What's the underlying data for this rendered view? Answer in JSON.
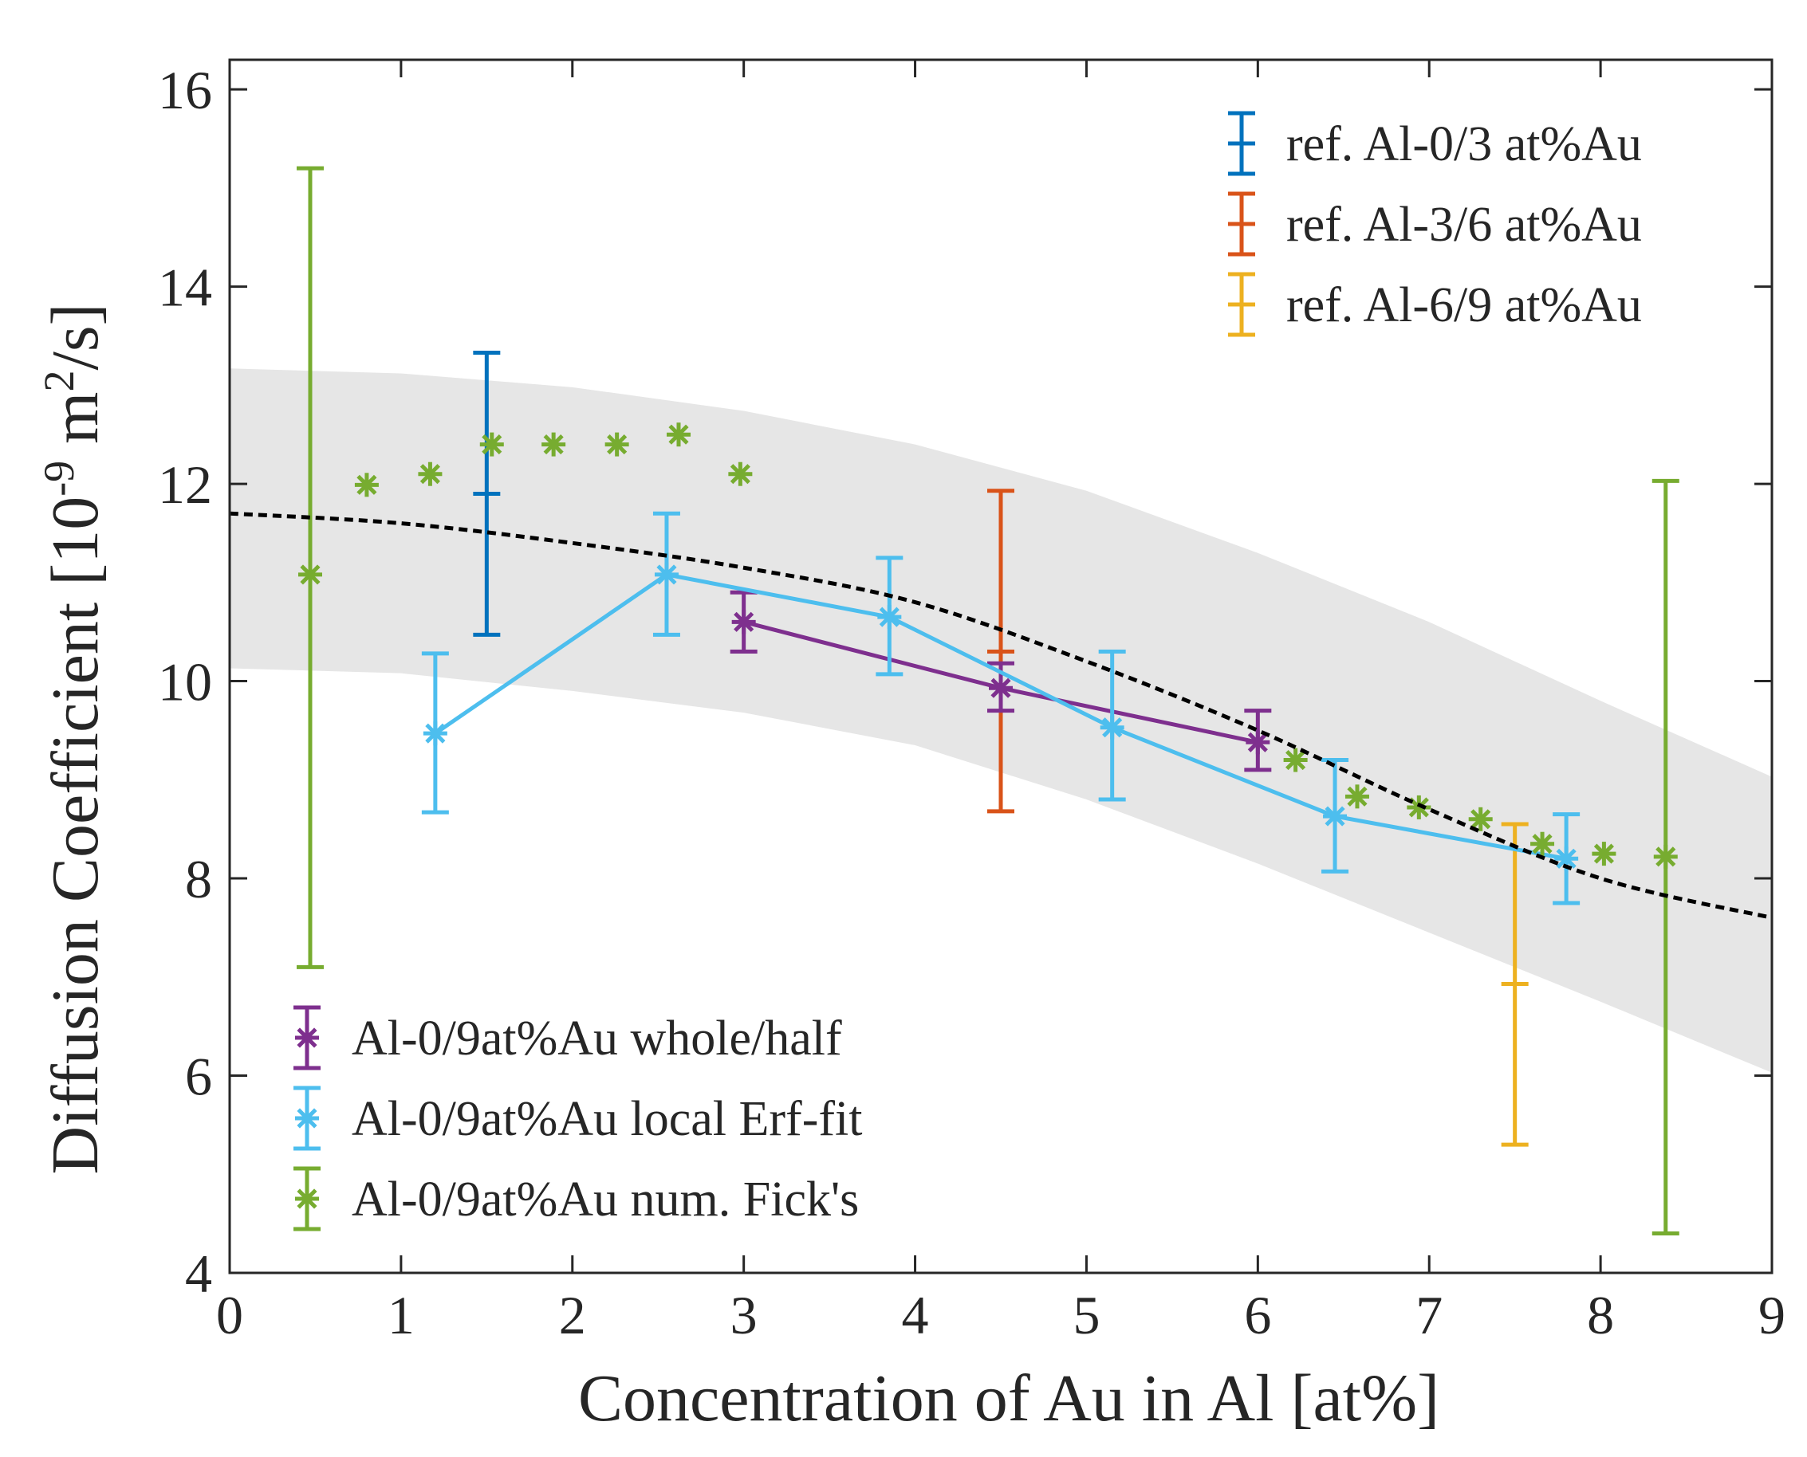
{
  "chart_data": {
    "type": "scatter",
    "xlabel": "Concentration of Au in Al [at%]",
    "ylabel_main": "Diffusion Coefficient [10",
    "ylabel_exp": "-9",
    "ylabel_mid": " m",
    "ylabel_sq": "2",
    "ylabel_end": "/s]",
    "xlim": [
      0,
      9
    ],
    "ylim": [
      4,
      16.3
    ],
    "xticks": [
      0,
      1,
      2,
      3,
      4,
      5,
      6,
      7,
      8,
      9
    ],
    "yticks": [
      4,
      6,
      8,
      10,
      12,
      14,
      16
    ],
    "legend_upper_right": [
      {
        "label": "ref. Al-0/3 at%Au",
        "color": "#0072BD",
        "marker": "errorbar"
      },
      {
        "label": "ref. Al-3/6 at%Au",
        "color": "#D95319",
        "marker": "errorbar"
      },
      {
        "label": "ref. Al-6/9 at%Au",
        "color": "#EDB120",
        "marker": "errorbar"
      }
    ],
    "legend_lower_left": [
      {
        "label": "Al-0/9at%Au whole/half",
        "color": "#7E2F8E",
        "marker": "errorbar-star"
      },
      {
        "label": "Al-0/9at%Au local Erf-fit",
        "color": "#4DBEEE",
        "marker": "errorbar-star"
      },
      {
        "label": "Al-0/9at%Au num. Fick's",
        "color": "#77AC30",
        "marker": "errorbar-star"
      }
    ],
    "band": {
      "color": "#e6e6e6",
      "x": [
        0,
        1,
        2,
        3,
        4,
        5,
        6,
        7,
        8,
        9
      ],
      "upper": [
        13.17,
        13.12,
        12.98,
        12.74,
        12.4,
        11.93,
        11.3,
        10.6,
        9.8,
        9.03
      ],
      "lower": [
        10.13,
        10.08,
        9.9,
        9.68,
        9.35,
        8.8,
        8.15,
        7.45,
        6.75,
        6.03
      ]
    },
    "fit_curve": {
      "style": "dashed",
      "color": "#000000",
      "x": [
        0,
        1,
        2,
        3,
        4,
        5,
        6,
        7,
        8,
        9
      ],
      "y": [
        11.7,
        11.6,
        11.4,
        11.15,
        10.8,
        10.2,
        9.5,
        8.7,
        8.0,
        7.6
      ]
    },
    "series": [
      {
        "name": "ref. Al-0/3 at%Au",
        "color": "#0072BD",
        "points": [
          {
            "x": 1.5,
            "y": 11.9,
            "low": 10.47,
            "high": 13.33
          }
        ]
      },
      {
        "name": "ref. Al-3/6 at%Au",
        "color": "#D95319",
        "points": [
          {
            "x": 4.5,
            "y": 10.3,
            "low": 8.68,
            "high": 11.93
          }
        ]
      },
      {
        "name": "ref. Al-6/9 at%Au",
        "color": "#EDB120",
        "points": [
          {
            "x": 7.5,
            "y": 6.93,
            "low": 5.3,
            "high": 8.55
          }
        ]
      },
      {
        "name": "Al-0/9at%Au whole/half",
        "color": "#7E2F8E",
        "line": true,
        "marker": "star",
        "points": [
          {
            "x": 3.0,
            "y": 10.6,
            "low": 10.3,
            "high": 10.9
          },
          {
            "x": 4.5,
            "y": 9.93,
            "low": 9.7,
            "high": 10.18
          },
          {
            "x": 6.0,
            "y": 9.38,
            "low": 9.1,
            "high": 9.7
          }
        ]
      },
      {
        "name": "Al-0/9at%Au local Erf-fit",
        "color": "#4DBEEE",
        "line": true,
        "marker": "star",
        "points": [
          {
            "x": 1.2,
            "y": 9.47,
            "low": 8.67,
            "high": 10.28
          },
          {
            "x": 2.55,
            "y": 11.08,
            "low": 10.47,
            "high": 11.7
          },
          {
            "x": 3.85,
            "y": 10.65,
            "low": 10.07,
            "high": 11.25
          },
          {
            "x": 5.15,
            "y": 9.53,
            "low": 8.8,
            "high": 10.3
          },
          {
            "x": 6.45,
            "y": 8.63,
            "low": 8.07,
            "high": 9.2
          },
          {
            "x": 7.8,
            "y": 8.2,
            "low": 7.75,
            "high": 8.65
          }
        ]
      },
      {
        "name": "Al-0/9at%Au num. Fick's",
        "color": "#77AC30",
        "line": false,
        "marker": "star",
        "points": [
          {
            "x": 0.47,
            "y": 11.08,
            "low": 7.1,
            "high": 15.2
          },
          {
            "x": 0.8,
            "y": 11.99
          },
          {
            "x": 1.17,
            "y": 12.1
          },
          {
            "x": 1.53,
            "y": 12.4
          },
          {
            "x": 1.89,
            "y": 12.4
          },
          {
            "x": 2.26,
            "y": 12.4
          },
          {
            "x": 2.62,
            "y": 12.5
          },
          {
            "x": 2.98,
            "y": 12.1
          },
          {
            "x": 6.22,
            "y": 9.2
          },
          {
            "x": 6.58,
            "y": 8.83
          },
          {
            "x": 6.94,
            "y": 8.72
          },
          {
            "x": 7.3,
            "y": 8.6
          },
          {
            "x": 7.66,
            "y": 8.35
          },
          {
            "x": 8.02,
            "y": 8.25
          },
          {
            "x": 8.38,
            "y": 8.22,
            "low": 4.4,
            "high": 12.03
          }
        ]
      }
    ]
  }
}
